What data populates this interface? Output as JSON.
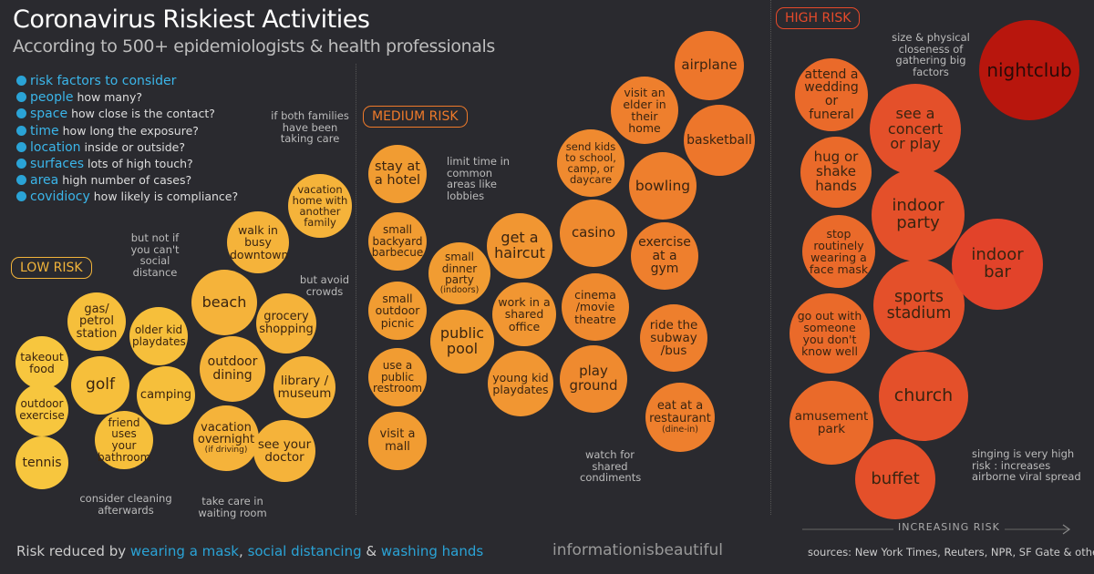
{
  "title": "Coronavirus Riskiest Activities",
  "subtitle": "According to 500+ epidemiologists & health professionals",
  "factors_heading": "risk factors to consider",
  "factors": [
    {
      "key": "people",
      "desc": "how many?"
    },
    {
      "key": "space",
      "desc": "how close is the contact?"
    },
    {
      "key": "time",
      "desc": "how long the exposure?"
    },
    {
      "key": "location",
      "desc": "inside or outside?"
    },
    {
      "key": "surfaces",
      "desc": "lots of high touch?"
    },
    {
      "key": "area",
      "desc": "high number of cases?"
    },
    {
      "key": "covidiocy",
      "desc": "how likely is compliance?"
    }
  ],
  "zones": {
    "low": "LOW RISK",
    "medium": "MEDIUM RISK",
    "high": "HIGH RISK"
  },
  "colors": {
    "background": "#2a2a2f",
    "accent": "#2aa3d6",
    "low": "#f2b43a",
    "medium": "#ef7a2a",
    "high": "#e64a2a",
    "highest": "#b8160d"
  },
  "activities": {
    "takeout_food": "takeout food",
    "outdoor_exercise": "outdoor exercise",
    "tennis": "tennis",
    "gas_station": "gas/ petrol station",
    "golf": "golf",
    "friend_bathroom": "friend uses your bathroom",
    "older_kid_playdates": "older kid playdates",
    "camping": "camping",
    "beach": "beach",
    "outdoor_dining": "outdoor dining",
    "vacation_overnight": "vacation overnight",
    "vacation_overnight_sub": "(if driving)",
    "walk_downtown": "walk in busy downtown",
    "vacation_home": "vacation home with another family",
    "grocery": "grocery shopping",
    "library": "library / museum",
    "see_doctor": "see your doctor",
    "stay_hotel": "stay at a hotel",
    "backyard_bbq": "small backyard barbecue",
    "outdoor_picnic": "small outdoor picnic",
    "public_restroom": "use a public restroom",
    "visit_mall": "visit a mall",
    "dinner_party": "small dinner party",
    "dinner_party_sub": "(indoors)",
    "public_pool": "public pool",
    "get_haircut": "get a haircut",
    "shared_office": "work in a shared office",
    "young_kid_playdates": "young kid playdates",
    "send_kids": "send kids to school, camp, or daycare",
    "casino": "casino",
    "cinema": "cinema /movie theatre",
    "playground": "play ground",
    "visit_elder": "visit an elder in their home",
    "bowling": "bowling",
    "exercise_gym": "exercise at a gym",
    "ride_subway": "ride the subway /bus",
    "eat_restaurant": "eat at a restaurant",
    "eat_restaurant_sub": "(dine-in)",
    "airplane": "airplane",
    "basketball": "basketball",
    "wedding": "attend a wedding or funeral",
    "hug": "hug or shake hands",
    "stop_mask": "stop routinely wearing a face mask",
    "go_out": "go out with someone you don't know well",
    "amusement_park": "amusement park",
    "concert": "see a concert or play",
    "indoor_party": "indoor party",
    "sports_stadium": "sports stadium",
    "church": "church",
    "buffet": "buffet",
    "indoor_bar": "indoor bar",
    "nightclub": "nightclub"
  },
  "notes": {
    "but_not": "but not if you can't social distance",
    "if_both_families": "if both families have been taking care",
    "but_avoid": "but avoid crowds",
    "consider_cleaning": "consider cleaning afterwards",
    "take_care": "take care in waiting room",
    "limit_time": "limit time in common areas like lobbies",
    "watch_condiments": "watch for shared condiments",
    "size_closeness": "size & physical closeness of gathering big factors",
    "singing": "singing is very high risk : increases airborne viral spread"
  },
  "axis_label": "INCREASING RISK",
  "footer": {
    "prefix": "Risk reduced by",
    "mask": "wearing a mask",
    "sep1": ",",
    "distancing": "social distancing",
    "amp": "&",
    "washing": "washing hands",
    "brand": "informationisbeautiful",
    "sources": "sources: New York Times, Reuters, NPR, SF Gate & others"
  }
}
